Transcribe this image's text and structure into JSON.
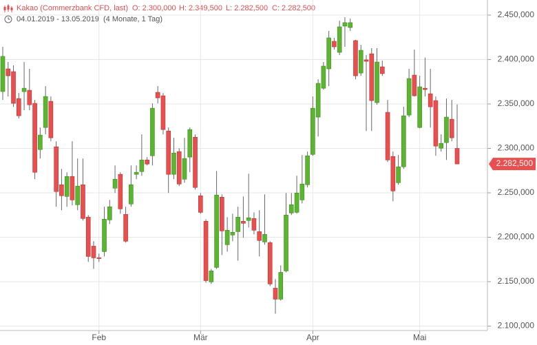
{
  "chart_data": {
    "type": "candlestick",
    "title": "Kakao (Commerzbank CFD, last)",
    "summary": [
      "O: 2.300,000",
      "H: 2.349,500",
      "L: 2.282,500",
      "C: 2.282,500"
    ],
    "date_range": "04.01.2019 - 13.05.2019",
    "period": "(4 Monate, 1 Tag)",
    "up_color": "#5cb531",
    "down_color": "#e94f4f",
    "grid": true,
    "ylim": [
      2095000,
      2467000
    ],
    "yticks": [
      {
        "value": 2100000,
        "label": "2.100,000"
      },
      {
        "value": 2150000,
        "label": "2.150,000"
      },
      {
        "value": 2200000,
        "label": "2.200,000"
      },
      {
        "value": 2250000,
        "label": "2.250,000"
      },
      {
        "value": 2300000,
        "label": "2.300,000"
      },
      {
        "value": 2350000,
        "label": "2.350,000"
      },
      {
        "value": 2400000,
        "label": "2.400,000"
      },
      {
        "value": 2450000,
        "label": "2.450,000"
      }
    ],
    "last_label": {
      "value": 2282500,
      "label": "2.282,500"
    },
    "categories": [
      null,
      null,
      null,
      null,
      null,
      null,
      null,
      null,
      null,
      null,
      null,
      null,
      null,
      null,
      null,
      null,
      null,
      null,
      "Feb",
      null,
      null,
      null,
      null,
      null,
      null,
      null,
      null,
      null,
      null,
      null,
      null,
      null,
      null,
      null,
      null,
      null,
      null,
      "Mär",
      null,
      null,
      null,
      null,
      null,
      null,
      null,
      null,
      null,
      null,
      null,
      null,
      null,
      null,
      null,
      null,
      null,
      null,
      null,
      null,
      "Apr",
      null,
      null,
      null,
      null,
      null,
      null,
      null,
      null,
      null,
      null,
      null,
      null,
      null,
      null,
      null,
      null,
      null,
      null,
      null,
      "Mai",
      null,
      null,
      null,
      null,
      null,
      null,
      null
    ],
    "open": [
      2364000,
      2389500,
      2386400,
      2356100,
      2363900,
      2365400,
      2350700,
      2298700,
      2323500,
      2353000,
      2301800,
      2259100,
      2245900,
      2268400,
      2236600,
      2259100,
      2222600,
      2190000,
      2177000,
      2183800,
      2219500,
      2255200,
      2270800,
      2225700,
      2237400,
      2270800,
      2273900,
      2287000,
      2291700,
      2363100,
      2359200,
      2319600,
      2270800,
      2296400,
      2265300,
      2290200,
      2312600,
      2246700,
      2218000,
      2149700,
      2166000,
      2245100,
      2191600,
      2202500,
      2206300,
      2218000,
      2218800,
      2221100,
      2206300,
      2194700,
      2193900,
      2142700,
      2130300,
      2162100,
      2227300,
      2228000,
      2242000,
      2259100,
      2293200,
      2335200,
      2367700,
      2389500,
      2420500,
      2408100,
      2437600,
      2436000,
      2421300,
      2384800,
      2399600,
      2406500,
      2351500,
      2391800,
      2340600,
      2290900,
      2261400,
      2279300,
      2337500,
      2382500,
      2323500,
      2367700,
      2361500,
      2353800,
      2300200,
      2306500,
      2332800,
      2300000
    ],
    "high": [
      2414300,
      2397200,
      2393400,
      2362300,
      2397200,
      2389500,
      2354500,
      2323500,
      2370100,
      2358400,
      2308000,
      2276900,
      2273100,
      2308000,
      2288600,
      2288600,
      2225000,
      2195500,
      2181500,
      2234300,
      2242000,
      2280800,
      2273100,
      2234300,
      2280800,
      2280800,
      2315800,
      2290200,
      2350700,
      2370100,
      2362300,
      2323500,
      2311900,
      2300200,
      2311900,
      2323500,
      2315800,
      2249800,
      2220300,
      2164400,
      2274600,
      2248200,
      2222600,
      2226500,
      2234300,
      2245900,
      2271500,
      2228000,
      2230400,
      2248200,
      2195500,
      2152800,
      2168300,
      2249800,
      2249800,
      2269200,
      2292500,
      2296400,
      2358400,
      2377800,
      2397200,
      2432200,
      2424400,
      2443800,
      2447700,
      2446100,
      2422100,
      2416600,
      2405000,
      2412800,
      2412800,
      2398800,
      2354500,
      2296400,
      2292500,
      2346800,
      2389500,
      2411200,
      2381700,
      2402300,
      2389500,
      2358400,
      2315800,
      2356100,
      2354500,
      2349500
    ],
    "low": [
      2354500,
      2358400,
      2346800,
      2333600,
      2342900,
      2342900,
      2265300,
      2288600,
      2315800,
      2308000,
      2234300,
      2230400,
      2234300,
      2235800,
      2230400,
      2218800,
      2172200,
      2164400,
      2172200,
      2178400,
      2214900,
      2249800,
      2226500,
      2193900,
      2234300,
      2265300,
      2269200,
      2280800,
      2280800,
      2350700,
      2315800,
      2249800,
      2265300,
      2257600,
      2261400,
      2273100,
      2253700,
      2226500,
      2148900,
      2147400,
      2164400,
      2180000,
      2183800,
      2195500,
      2173700,
      2199400,
      2211000,
      2203300,
      2178400,
      2191600,
      2145000,
      2114000,
      2128700,
      2160500,
      2225000,
      2226500,
      2238100,
      2256000,
      2291700,
      2313400,
      2366200,
      2370100,
      2411200,
      2405000,
      2414300,
      2432200,
      2377800,
      2381700,
      2319600,
      2319600,
      2349100,
      2381700,
      2284700,
      2240500,
      2259100,
      2276900,
      2335200,
      2358400,
      2322700,
      2358400,
      2323500,
      2291700,
      2296400,
      2287000,
      2308000,
      2282500
    ],
    "close": [
      2403500,
      2381700,
      2350700,
      2336700,
      2367700,
      2349100,
      2273100,
      2315000,
      2358400,
      2311900,
      2251400,
      2246700,
      2268400,
      2242000,
      2257600,
      2221100,
      2178400,
      2176800,
      2176000,
      2220300,
      2234300,
      2265300,
      2231900,
      2195500,
      2259100,
      2273100,
      2287000,
      2282400,
      2345200,
      2356900,
      2321200,
      2270800,
      2294800,
      2259900,
      2288600,
      2321200,
      2256000,
      2228000,
      2151200,
      2162100,
      2247500,
      2207100,
      2207900,
      2205600,
      2222600,
      2215700,
      2221900,
      2207900,
      2196300,
      2203300,
      2147400,
      2130300,
      2160500,
      2225000,
      2236600,
      2249800,
      2259900,
      2291700,
      2345200,
      2373200,
      2392600,
      2424400,
      2414300,
      2436800,
      2441500,
      2441500,
      2381700,
      2410400,
      2398000,
      2353800,
      2397200,
      2384100,
      2287000,
      2252100,
      2279300,
      2336700,
      2378600,
      2359200,
      2369300,
      2366200,
      2346800,
      2302600,
      2305700,
      2335200,
      2311900,
      2282500
    ]
  }
}
